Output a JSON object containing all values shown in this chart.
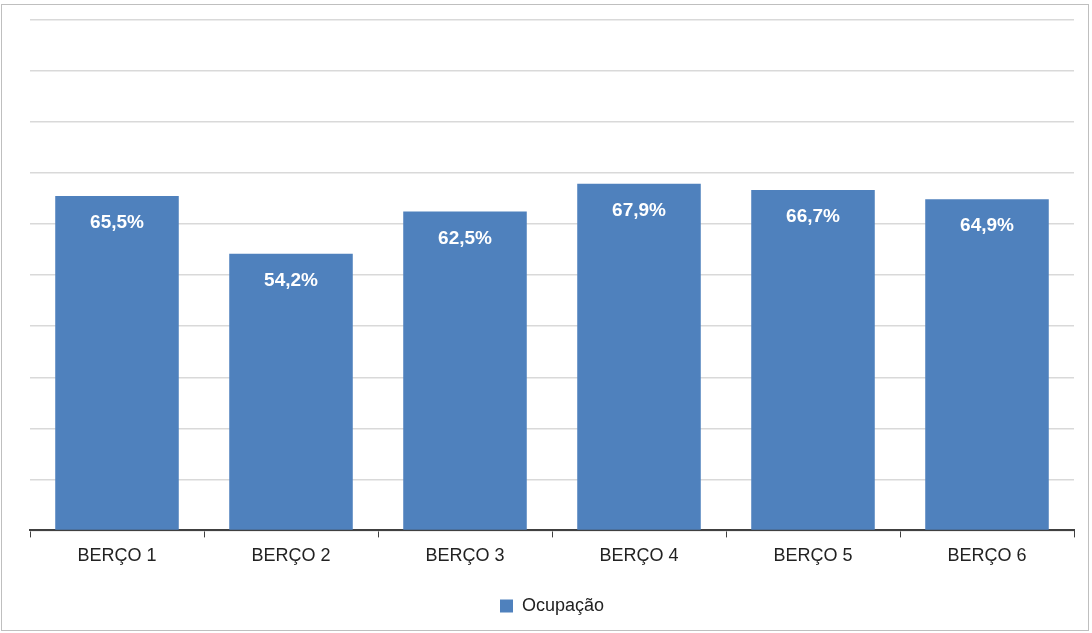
{
  "chart_data": {
    "type": "bar",
    "categories": [
      "BERÇO 1",
      "BERÇO 2",
      "BERÇO 3",
      "BERÇO 4",
      "BERÇO 5",
      "BERÇO 6"
    ],
    "series": [
      {
        "name": "Ocupação",
        "color": "#4f81bd",
        "values": [
          65.5,
          54.2,
          62.5,
          67.9,
          66.7,
          64.9
        ],
        "value_labels": [
          "65,5%",
          "54,2%",
          "62,5%",
          "67,9%",
          "66,7%",
          "64,9%"
        ]
      }
    ],
    "ylim": [
      0,
      100
    ],
    "yticks": [
      {
        "value": 0,
        "label": null
      },
      {
        "value": 10,
        "label": null
      },
      {
        "value": 20,
        "label": null
      },
      {
        "value": 30,
        "label": null
      },
      {
        "value": 40,
        "label": null
      },
      {
        "value": 50,
        "label": null
      },
      {
        "value": 60,
        "label": null
      },
      {
        "value": 70,
        "label": null
      },
      {
        "value": 80,
        "label": null
      },
      {
        "value": 90,
        "label": null
      },
      {
        "value": 100,
        "label": null
      }
    ],
    "tick_labels": "x",
    "grid": "y",
    "legend": "bottom"
  }
}
